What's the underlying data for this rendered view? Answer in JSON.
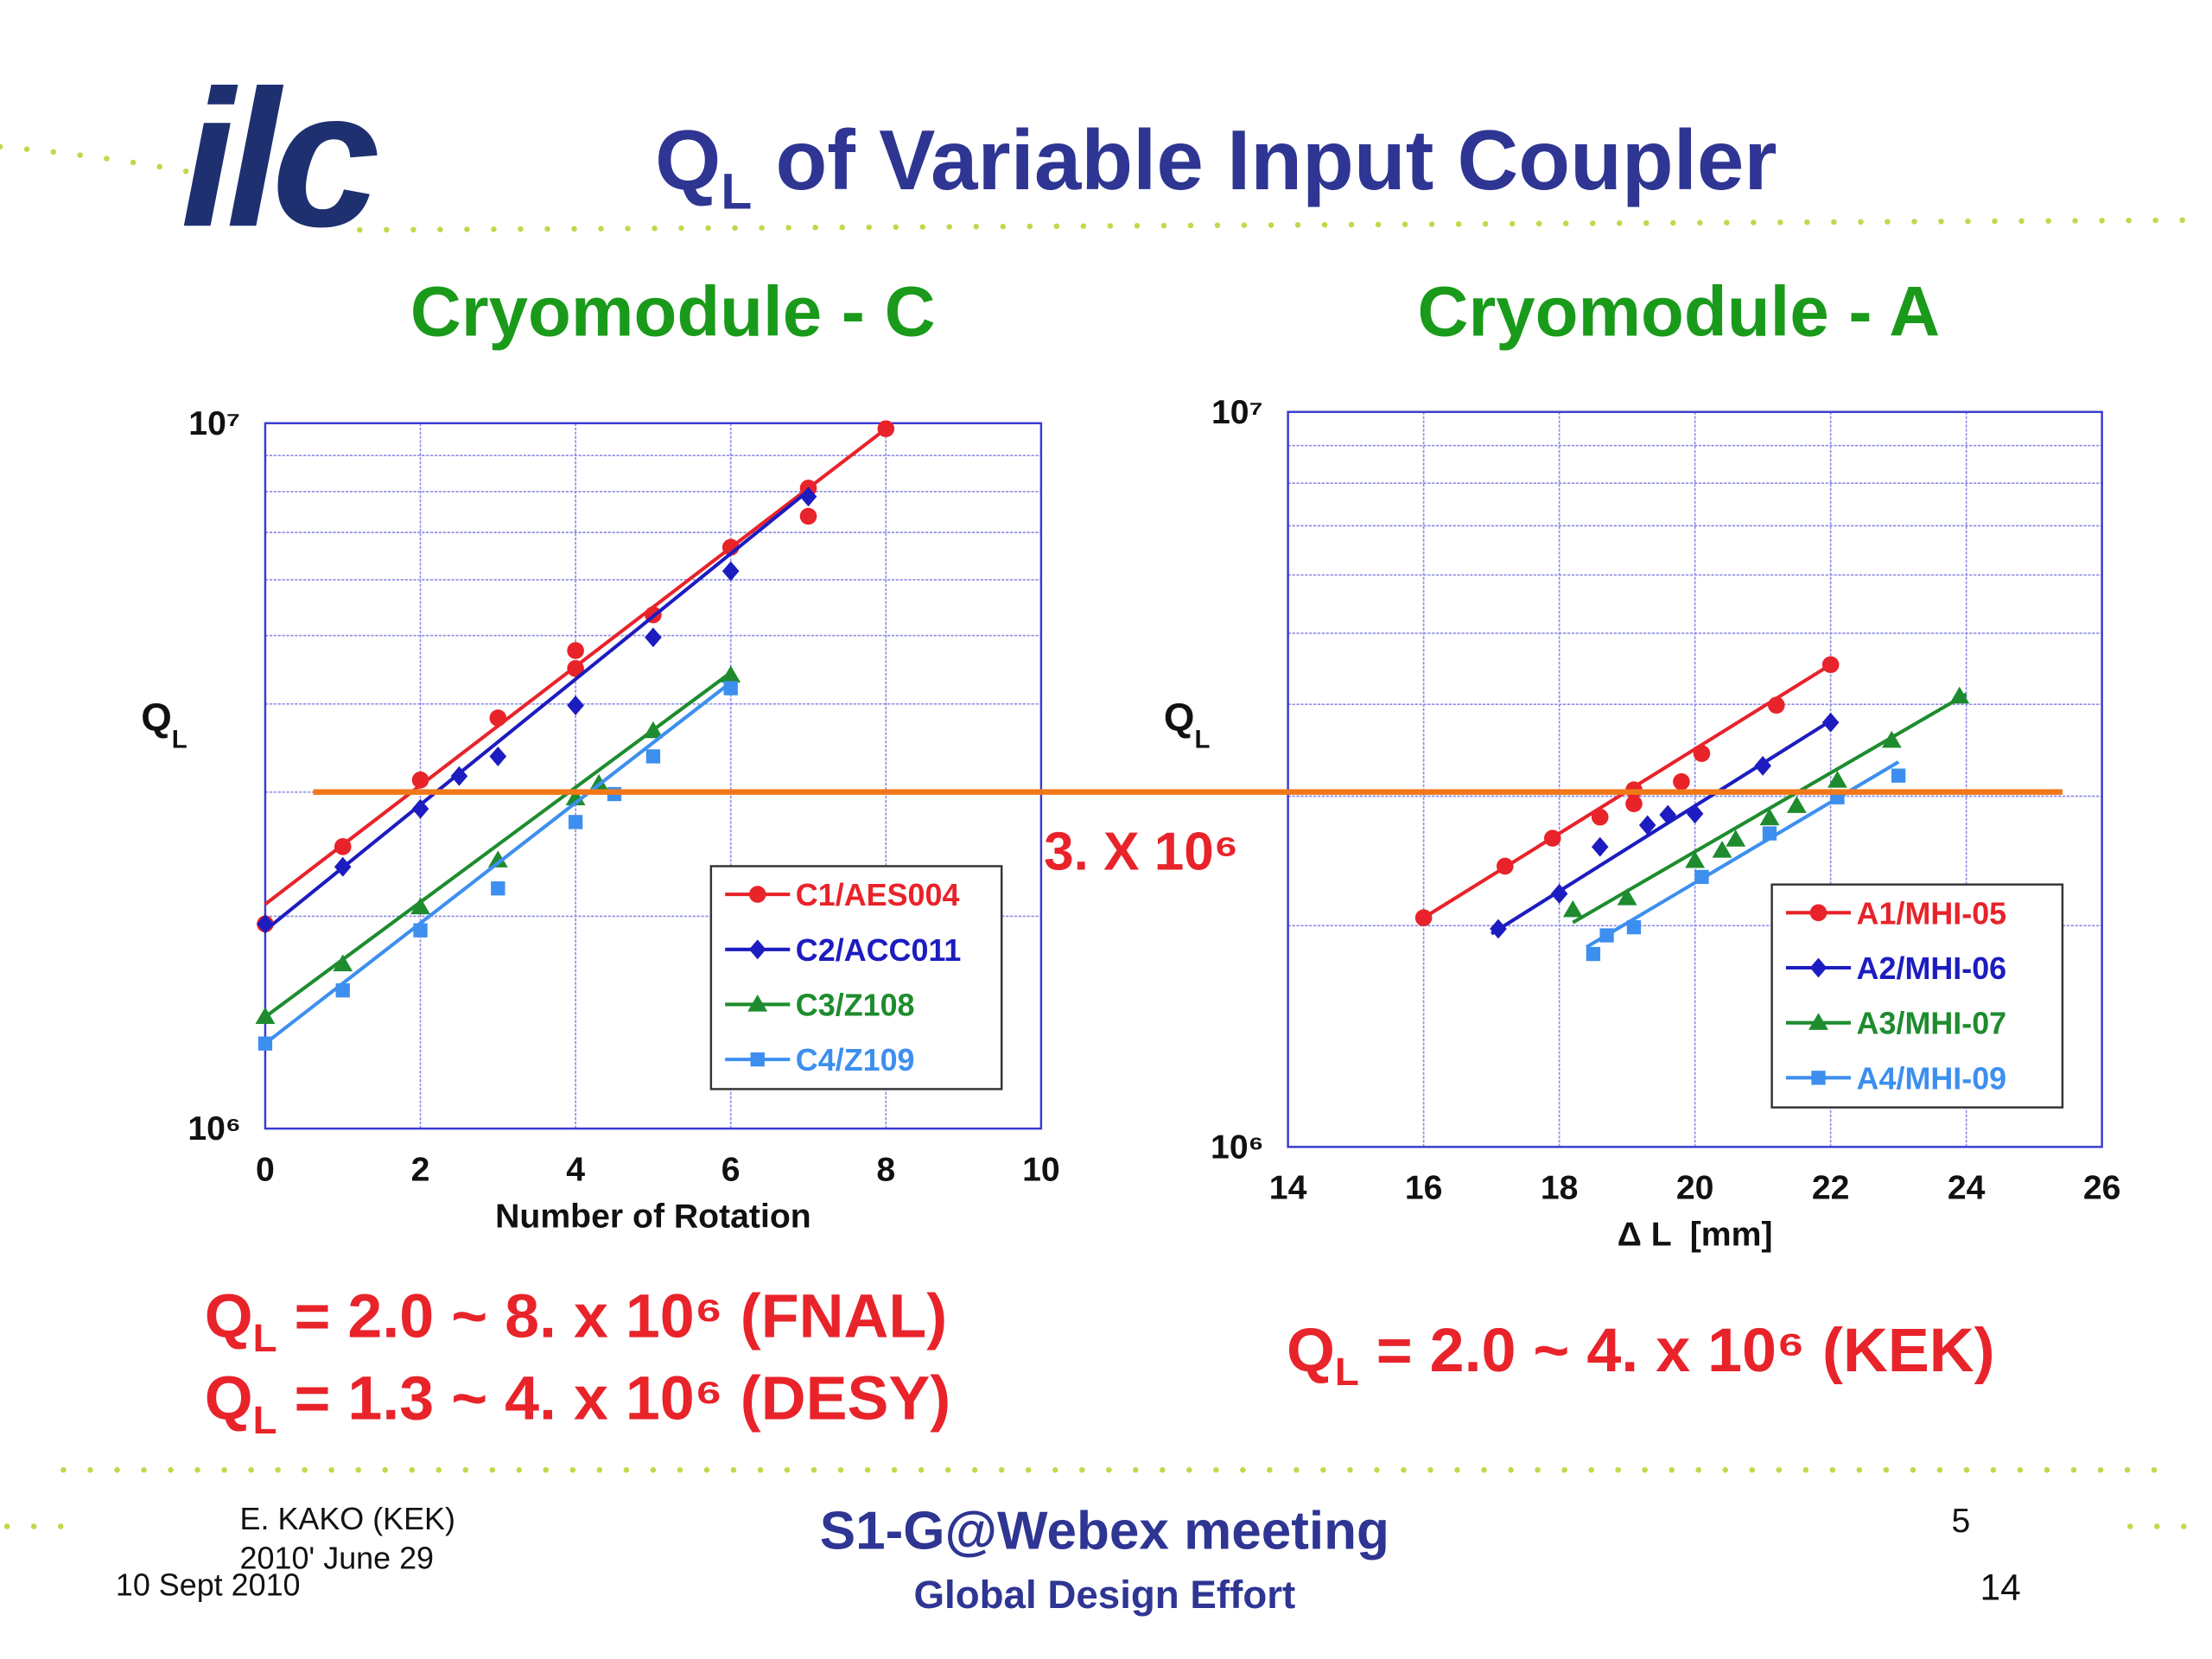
{
  "header": {
    "logo": "ilc",
    "title_q": "Q",
    "title_sub": "L",
    "title_rest": " of Variable Input Coupler"
  },
  "reference": {
    "value": 3000000,
    "label": "3. X 10⁶",
    "color": "#f07818",
    "label_color": "#e8232a"
  },
  "chart_data": [
    {
      "type": "scatter",
      "title": "Cryomodule - C",
      "title_color": "#1a9a1a",
      "x_label": "Number of Rotation",
      "y_label": "Q",
      "y_label_sub": "L",
      "xlim": [
        0,
        10
      ],
      "xticks": [
        0,
        2,
        4,
        6,
        8,
        10
      ],
      "ylim": [
        1000000,
        10000000
      ],
      "yscale": "log",
      "yticks": [
        {
          "value": 1000000,
          "label": "10⁶"
        },
        {
          "value": 10000000,
          "label": "10⁷"
        }
      ],
      "y_minor_grid": [
        2000000,
        3000000,
        4000000,
        5000000,
        6000000,
        7000000,
        8000000,
        9000000
      ],
      "grid": true,
      "legend": "lower right",
      "series": [
        {
          "name": "C1/AES004",
          "color": "#e8232a",
          "marker": "circle",
          "x": [
            0,
            1,
            2,
            3,
            4,
            4,
            5,
            6,
            7,
            7,
            8
          ],
          "values": [
            1950000,
            2510000,
            3120000,
            3820000,
            4760000,
            4490000,
            5350000,
            6670000,
            8090000,
            7380000,
            9820000
          ],
          "fit": {
            "x": [
              0,
              8
            ],
            "y": [
              2080000,
              9820000
            ]
          }
        },
        {
          "name": "C2/ACC011",
          "color": "#1c1cc0",
          "marker": "diamond",
          "x": [
            0,
            1,
            2,
            2.5,
            3,
            4,
            5,
            6,
            7
          ],
          "values": [
            1950000,
            2350000,
            2840000,
            3160000,
            3370000,
            3980000,
            4970000,
            6170000,
            7870000
          ],
          "fit": {
            "x": [
              0,
              7
            ],
            "y": [
              1910000,
              8020000
            ]
          }
        },
        {
          "name": "C3/Z108",
          "color": "#1e8c2e",
          "marker": "triangle",
          "x": [
            0,
            1,
            2,
            3,
            4,
            4.3,
            5,
            6
          ],
          "values": [
            1440000,
            1710000,
            2060000,
            2400000,
            2940000,
            3080000,
            3660000,
            4390000
          ],
          "fit": {
            "x": [
              0,
              6
            ],
            "y": [
              1440000,
              4430000
            ]
          }
        },
        {
          "name": "C4/Z109",
          "color": "#3d8fef",
          "marker": "square",
          "x": [
            0,
            1,
            2,
            3,
            4,
            4.5,
            5,
            6
          ],
          "values": [
            1320000,
            1570000,
            1910000,
            2190000,
            2720000,
            2980000,
            3370000,
            4210000
          ],
          "fit": {
            "x": [
              0,
              6
            ],
            "y": [
              1320000,
              4290000
            ]
          }
        }
      ]
    },
    {
      "type": "scatter",
      "title": "Cryomodule - A",
      "title_color": "#1a9a1a",
      "x_label": "Δ L  [mm]",
      "y_label": "Q",
      "y_label_sub": "L",
      "xlim": [
        14,
        26
      ],
      "xticks": [
        14,
        16,
        18,
        20,
        22,
        24,
        26
      ],
      "ylim": [
        1000000,
        10000000
      ],
      "yscale": "log",
      "yticks": [
        {
          "value": 1000000,
          "label": "10⁶"
        },
        {
          "value": 10000000,
          "label": "10⁷"
        }
      ],
      "y_minor_grid": [
        2000000,
        3000000,
        4000000,
        5000000,
        6000000,
        7000000,
        8000000,
        9000000
      ],
      "grid": true,
      "legend": "lower right",
      "series": [
        {
          "name": "A1/MHI-05",
          "color": "#e8232a",
          "marker": "circle",
          "x": [
            16,
            17.2,
            17.9,
            18.6,
            19.1,
            19.1,
            19.8,
            20.1,
            21.2,
            22
          ],
          "values": [
            2050000,
            2410000,
            2630000,
            2810000,
            3060000,
            2930000,
            3140000,
            3430000,
            3990000,
            4530000
          ],
          "fit": {
            "x": [
              16,
              22
            ],
            "y": [
              2050000,
              4530000
            ]
          }
        },
        {
          "name": "A2/MHI-06",
          "color": "#1c1cc0",
          "marker": "diamond",
          "x": [
            17.1,
            18,
            18.6,
            19.3,
            19.6,
            20,
            21,
            22
          ],
          "values": [
            1980000,
            2210000,
            2560000,
            2740000,
            2830000,
            2840000,
            3300000,
            3780000
          ],
          "fit": {
            "x": [
              17,
              22
            ],
            "y": [
              1950000,
              3800000
            ]
          }
        },
        {
          "name": "A3/MHI-07",
          "color": "#1e8c2e",
          "marker": "triangle",
          "x": [
            18.2,
            19,
            20,
            20.4,
            20.6,
            21.1,
            21.5,
            22.1,
            22.9,
            23.9
          ],
          "values": [
            2100000,
            2180000,
            2450000,
            2530000,
            2620000,
            2800000,
            2910000,
            3150000,
            3570000,
            4100000
          ],
          "fit": {
            "x": [
              18.2,
              24
            ],
            "y": [
              2020000,
              4130000
            ]
          }
        },
        {
          "name": "A4/MHI-09",
          "color": "#3d8fef",
          "marker": "square",
          "x": [
            18.5,
            18.7,
            19.1,
            20.1,
            21.1,
            22.1,
            23
          ],
          "values": [
            1830000,
            1940000,
            1990000,
            2330000,
            2670000,
            2990000,
            3200000
          ],
          "fit": {
            "x": [
              18.4,
              23
            ],
            "y": [
              1870000,
              3340000
            ]
          }
        }
      ]
    }
  ],
  "notes": [
    {
      "q": "Q",
      "sub": "L",
      "text": " = 2.0 ~ 8. x 10⁶ (FNAL)"
    },
    {
      "q": "Q",
      "sub": "L",
      "text": " = 1.3 ~ 4. x 10⁶ (DESY)"
    },
    {
      "q": "Q",
      "sub": "L",
      "text": " = 2.0 ~ 4. x 10⁶ (KEK)"
    }
  ],
  "footer": {
    "author": "E. KAKO (KEK)",
    "date_original": "2010' June 29",
    "date": "10 Sept 2010",
    "meeting": "S1-G@Webex meeting",
    "org": "Global Design Effort",
    "page_original": "5",
    "page": "14"
  }
}
